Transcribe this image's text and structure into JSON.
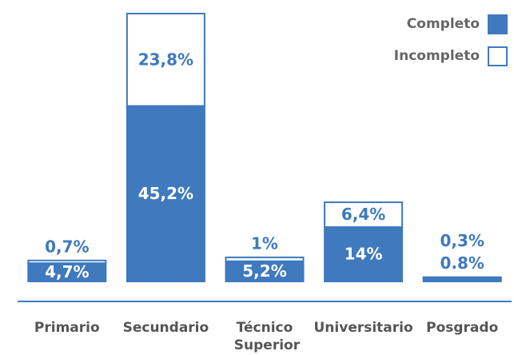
{
  "chart_data": {
    "type": "bar",
    "stacked": true,
    "categories": [
      "Primario",
      "Secundario",
      "Técnico Superior",
      "Universitario",
      "Posgrado"
    ],
    "series": [
      {
        "name": "Completo",
        "color": "#3f79be",
        "values": [
          4.7,
          45.2,
          5.2,
          14,
          0.8
        ],
        "value_labels": [
          "4,7%",
          "45,2%",
          "5,2%",
          "14%",
          "0.8%"
        ]
      },
      {
        "name": "Incompleto",
        "color": "#ffffff",
        "values": [
          0.7,
          23.8,
          1,
          6.4,
          0.3
        ],
        "value_labels": [
          "0,7%",
          "23,8%",
          "1%",
          "6,4%",
          "0,3%"
        ]
      }
    ],
    "legend": "top-right"
  }
}
